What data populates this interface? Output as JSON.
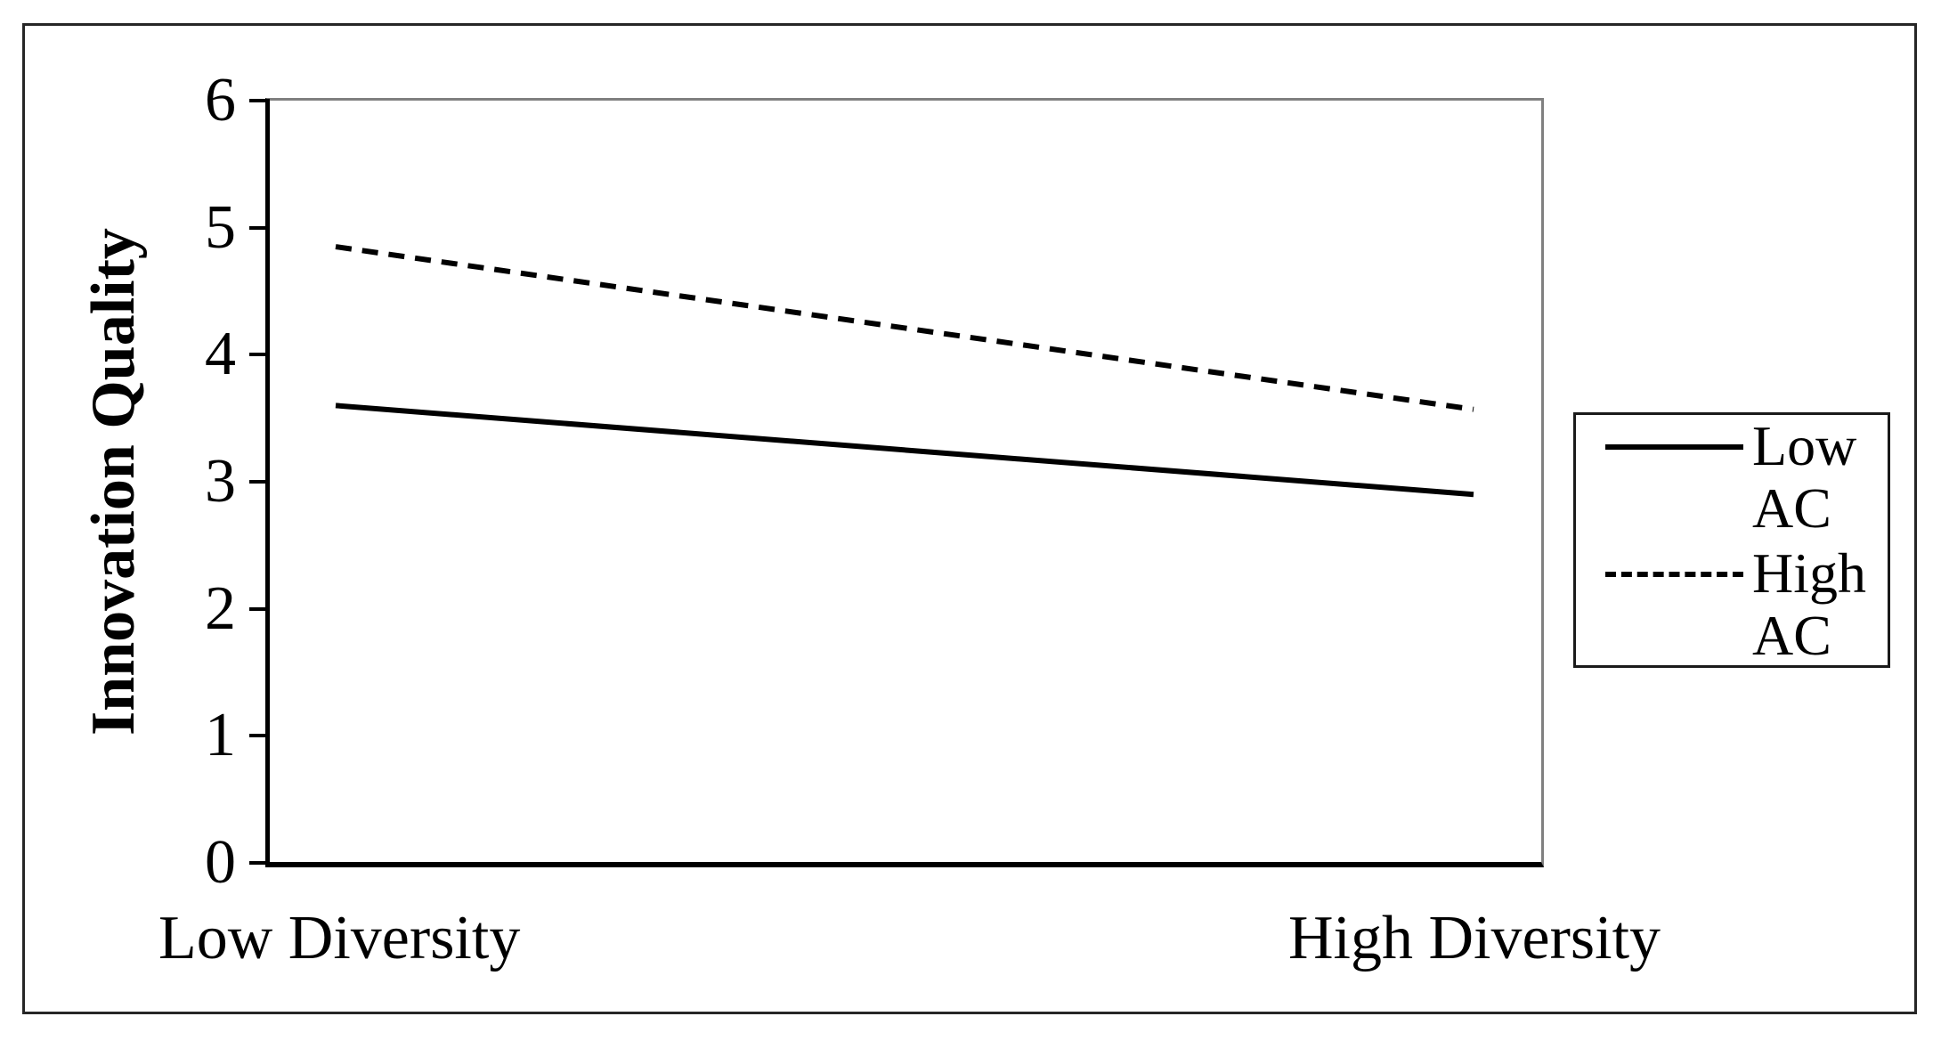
{
  "figure": {
    "y_axis_title": "Innovation Quality",
    "x_axis_labels": {
      "left": "Low Diversity",
      "right": "High Diversity"
    }
  },
  "legend": {
    "items": [
      {
        "label": "Low AC",
        "style": "solid"
      },
      {
        "label": "High AC",
        "style": "dashed"
      }
    ]
  },
  "chart_data": {
    "type": "line",
    "categories": [
      "Low Diversity",
      "High Diversity"
    ],
    "series": [
      {
        "name": "Low AC",
        "style": "solid",
        "values": [
          3.6,
          2.9
        ]
      },
      {
        "name": "High AC",
        "style": "dashed",
        "values": [
          4.85,
          3.57
        ]
      }
    ],
    "title": "",
    "xlabel": "",
    "ylabel": "Innovation Quality",
    "ylim": [
      0,
      6
    ],
    "yticks": [
      6,
      5,
      4,
      3,
      2,
      1,
      0
    ],
    "grid": false,
    "legend_position": "right-outside"
  },
  "colors": {
    "line": "#000000",
    "plot_border_gray": "#808080",
    "axis_black": "#000000",
    "outer_border": "#262626"
  }
}
